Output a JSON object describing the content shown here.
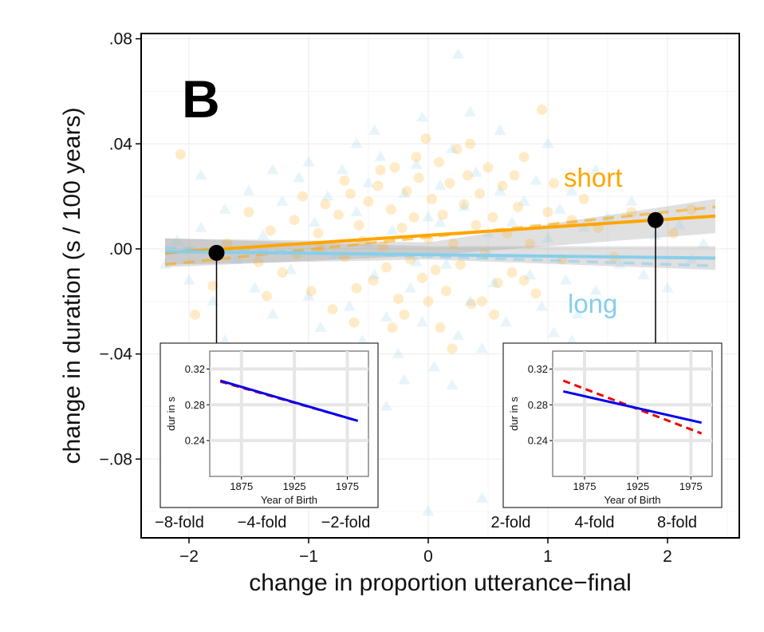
{
  "chart_data": {
    "type": "scatter",
    "panel_label": "B",
    "xlabel": "change in proportion utterance−final",
    "ylabel": "change in duration (s / 100 years)",
    "xlim": [
      -2.4,
      2.6
    ],
    "ylim": [
      -0.11,
      0.082
    ],
    "x_ticks": [
      {
        "v": -2,
        "label": "−2"
      },
      {
        "v": -1,
        "label": "−1"
      },
      {
        "v": 0,
        "label": "0"
      },
      {
        "v": 1,
        "label": "1"
      },
      {
        "v": 2,
        "label": "2"
      }
    ],
    "y_ticks": [
      {
        "v": 0.08,
        "label": ".08"
      },
      {
        "v": 0.04,
        "label": ".04"
      },
      {
        "v": 0.0,
        "label": ".00"
      },
      {
        "v": -0.04,
        "label": "−.04"
      },
      {
        "v": -0.08,
        "label": "−.08"
      }
    ],
    "fold_labels": [
      {
        "v": -2.08,
        "label": "−8-fold"
      },
      {
        "v": -1.39,
        "label": "−4-fold"
      },
      {
        "v": -0.69,
        "label": "−2-fold"
      },
      {
        "v": 0.69,
        "label": "2-fold"
      },
      {
        "v": 1.39,
        "label": "4-fold"
      },
      {
        "v": 2.08,
        "label": "8-fold"
      }
    ],
    "grid": true,
    "series": [
      {
        "name": "short",
        "color": "#FFA500",
        "marker": "circle",
        "fit": {
          "x": [
            -2.2,
            2.4
          ],
          "y": [
            -0.0015,
            0.0125
          ]
        },
        "dashed_fit": {
          "x": [
            -2.2,
            2.4
          ],
          "y": [
            -0.006,
            0.016
          ]
        },
        "ci_upper": [
          -2.2,
          0.004,
          0,
          0.0025,
          2.4,
          0.019
        ],
        "ci_lower": [
          -2.2,
          -0.007,
          0,
          -0.0025,
          2.4,
          0.006
        ],
        "points": [
          [
            -2.07,
            0.036
          ],
          [
            -1.95,
            -0.025
          ],
          [
            -1.8,
            -0.014
          ],
          [
            -1.68,
            0.002
          ],
          [
            -1.5,
            0.014
          ],
          [
            -1.42,
            -0.005
          ],
          [
            -1.32,
            0.007
          ],
          [
            -1.22,
            -0.009
          ],
          [
            -1.12,
            0.011
          ],
          [
            -1.05,
            0.02
          ],
          [
            -0.98,
            -0.016
          ],
          [
            -0.92,
            0.006
          ],
          [
            -0.86,
            0.017
          ],
          [
            -0.8,
            -0.023
          ],
          [
            -0.75,
            0.013
          ],
          [
            -0.7,
            -0.003
          ],
          [
            -0.65,
            0.021
          ],
          [
            -0.62,
            -0.028
          ],
          [
            -0.58,
            0.009
          ],
          [
            -0.55,
            0.003
          ],
          [
            -0.5,
            0.018
          ],
          [
            -0.46,
            -0.012
          ],
          [
            -0.42,
            0.024
          ],
          [
            -0.38,
            0.001
          ],
          [
            -0.35,
            -0.007
          ],
          [
            -0.31,
            0.015
          ],
          [
            -0.28,
            0.031
          ],
          [
            -0.25,
            -0.019
          ],
          [
            -0.22,
            0.008
          ],
          [
            -0.18,
            0.022
          ],
          [
            -0.15,
            -0.004
          ],
          [
            -0.12,
            0.012
          ],
          [
            -0.08,
            0.027
          ],
          [
            -0.05,
            -0.011
          ],
          [
            -0.02,
            0.042
          ],
          [
            0.0,
            0.004
          ],
          [
            0.03,
            0.019
          ],
          [
            0.06,
            -0.008
          ],
          [
            0.09,
            0.033
          ],
          [
            0.12,
            0.013
          ],
          [
            0.15,
            -0.016
          ],
          [
            0.18,
            0.025
          ],
          [
            0.21,
            0.002
          ],
          [
            0.24,
            0.038
          ],
          [
            0.27,
            -0.006
          ],
          [
            0.3,
            0.017
          ],
          [
            0.33,
            0.028
          ],
          [
            0.36,
            -0.021
          ],
          [
            0.4,
            0.009
          ],
          [
            0.43,
            0.021
          ],
          [
            0.47,
            -0.002
          ],
          [
            0.5,
            0.031
          ],
          [
            0.54,
            0.012
          ],
          [
            0.58,
            -0.013
          ],
          [
            0.62,
            0.024
          ],
          [
            0.66,
            0.006
          ],
          [
            0.7,
            -0.009
          ],
          [
            0.75,
            0.016
          ],
          [
            0.8,
            0.035
          ],
          [
            0.85,
            0.002
          ],
          [
            0.9,
            -0.017
          ],
          [
            0.95,
            0.053
          ],
          [
            1.0,
            0.014
          ],
          [
            1.05,
            0.025
          ],
          [
            1.12,
            -0.004
          ],
          [
            1.2,
            0.011
          ],
          [
            1.3,
            0.019
          ],
          [
            1.42,
            0.008
          ],
          [
            1.55,
            -0.003
          ],
          [
            1.7,
            0.014
          ],
          [
            1.88,
            0.01
          ],
          [
            2.05,
            0.006
          ],
          [
            2.2,
            0.015
          ],
          [
            -1.1,
            -0.002
          ],
          [
            -0.9,
            0.0
          ],
          [
            -0.6,
            -0.015
          ],
          [
            -0.4,
            0.03
          ],
          [
            -0.2,
            -0.025
          ],
          [
            0.1,
            -0.03
          ],
          [
            0.35,
            0.04
          ],
          [
            0.55,
            -0.025
          ],
          [
            0.72,
            0.028
          ],
          [
            -0.7,
            0.026
          ],
          [
            0.2,
            -0.038
          ],
          [
            -0.1,
            0.035
          ],
          [
            0.45,
            -0.02
          ],
          [
            0.8,
            -0.012
          ],
          [
            -1.35,
            -0.018
          ],
          [
            0.0,
            -0.02
          ],
          [
            -0.3,
            -0.03
          ]
        ]
      },
      {
        "name": "long",
        "color": "#87CEEB",
        "marker": "triangle",
        "fit": {
          "x": [
            -2.2,
            2.4
          ],
          "y": [
            -0.001,
            -0.0035
          ]
        },
        "dashed_fit": {
          "x": [
            -2.2,
            2.4
          ],
          "y": [
            0.0005,
            -0.0065
          ]
        },
        "ci_upper": [
          -2.2,
          0.004,
          0,
          0.001,
          2.4,
          0.001
        ],
        "ci_lower": [
          -2.2,
          -0.006,
          0,
          -0.004,
          2.4,
          -0.008
        ],
        "points": [
          [
            -2.2,
            -0.006
          ],
          [
            -2.1,
            0.003
          ],
          [
            -2.0,
            -0.012
          ],
          [
            -1.9,
            0.008
          ],
          [
            -1.8,
            -0.02
          ],
          [
            -1.7,
            0.015
          ],
          [
            -1.6,
            -0.004
          ],
          [
            -1.5,
            0.022
          ],
          [
            -1.45,
            -0.015
          ],
          [
            -1.38,
            0.005
          ],
          [
            -1.3,
            -0.025
          ],
          [
            -1.22,
            0.018
          ],
          [
            -1.15,
            -0.008
          ],
          [
            -1.08,
            0.027
          ],
          [
            -1.0,
            -0.018
          ],
          [
            -0.95,
            0.01
          ],
          [
            -0.9,
            -0.03
          ],
          [
            -0.84,
            0.02
          ],
          [
            -0.78,
            -0.002
          ],
          [
            -0.72,
            0.03
          ],
          [
            -0.66,
            -0.022
          ],
          [
            -0.6,
            0.014
          ],
          [
            -0.55,
            -0.035
          ],
          [
            -0.5,
            0.025
          ],
          [
            -0.45,
            -0.01
          ],
          [
            -0.4,
            0.035
          ],
          [
            -0.35,
            -0.026
          ],
          [
            -0.3,
            0.007
          ],
          [
            -0.25,
            -0.04
          ],
          [
            -0.2,
            0.021
          ],
          [
            -0.15,
            -0.015
          ],
          [
            -0.1,
            0.032
          ],
          [
            -0.05,
            -0.028
          ],
          [
            0.0,
            0.012
          ],
          [
            0.05,
            -0.045
          ],
          [
            0.1,
            0.024
          ],
          [
            0.15,
            -0.006
          ],
          [
            0.2,
            0.038
          ],
          [
            0.25,
            -0.033
          ],
          [
            0.3,
            0.016
          ],
          [
            0.35,
            -0.02
          ],
          [
            0.4,
            0.029
          ],
          [
            0.45,
            -0.038
          ],
          [
            0.5,
            0.006
          ],
          [
            0.55,
            -0.013
          ],
          [
            0.6,
            0.022
          ],
          [
            0.65,
            -0.028
          ],
          [
            0.7,
            0.01
          ],
          [
            0.75,
            -0.045
          ],
          [
            0.8,
            0.018
          ],
          [
            0.85,
            -0.01
          ],
          [
            0.9,
            0.026
          ],
          [
            0.95,
            -0.022
          ],
          [
            1.0,
            0.004
          ],
          [
            1.05,
            -0.032
          ],
          [
            1.1,
            0.015
          ],
          [
            1.15,
            -0.012
          ],
          [
            1.2,
            0.022
          ],
          [
            1.25,
            -0.025
          ],
          [
            1.3,
            0.008
          ],
          [
            1.4,
            -0.016
          ],
          [
            1.5,
            0.012
          ],
          [
            1.6,
            -0.006
          ],
          [
            1.7,
            0.018
          ],
          [
            1.8,
            -0.01
          ],
          [
            1.9,
            0.005
          ],
          [
            2.0,
            -0.015
          ],
          [
            2.1,
            0.009
          ],
          [
            2.2,
            -0.004
          ],
          [
            2.3,
            0.002
          ],
          [
            0.25,
            0.074
          ],
          [
            0.45,
            -0.095
          ],
          [
            0.0,
            -0.1
          ],
          [
            -0.6,
            0.04
          ],
          [
            0.6,
            0.045
          ],
          [
            -1.0,
            0.033
          ],
          [
            1.2,
            -0.035
          ],
          [
            -0.2,
            -0.05
          ],
          [
            0.2,
            -0.052
          ],
          [
            -0.8,
            -0.04
          ],
          [
            0.8,
            -0.04
          ],
          [
            -1.3,
            0.03
          ],
          [
            1.4,
            0.03
          ],
          [
            -1.7,
            -0.035
          ],
          [
            0.35,
            0.052
          ],
          [
            -0.45,
            0.045
          ],
          [
            -0.05,
            0.05
          ],
          [
            0.7,
            -0.055
          ],
          [
            -0.35,
            -0.06
          ],
          [
            1.0,
            0.04
          ],
          [
            -1.9,
            0.028
          ],
          [
            0.1,
            0.01
          ],
          [
            -0.1,
            -0.005
          ],
          [
            0.5,
            -0.002
          ],
          [
            -0.5,
            0.002
          ]
        ]
      }
    ],
    "callout_points": [
      {
        "x": -1.77,
        "y": -0.0015
      },
      {
        "x": 1.9,
        "y": 0.011
      }
    ],
    "insets": [
      {
        "ylabel": "dur in s",
        "xlabel": "Year of Birth",
        "x_ticks": [
          "1875",
          "1925",
          "1975"
        ],
        "y_ticks": [
          "0.32",
          "0.28",
          "0.24"
        ],
        "x_tick_values": [
          1875,
          1925,
          1975
        ],
        "y_tick_values": [
          0.32,
          0.28,
          0.24
        ],
        "xlim": [
          1845,
          1995
        ],
        "ylim": [
          0.2,
          0.34
        ],
        "red_dashed": {
          "x": [
            1855,
            1985
          ],
          "y": [
            0.306,
            0.262
          ]
        },
        "blue": {
          "x": [
            1855,
            1985
          ],
          "y": [
            0.307,
            0.262
          ]
        }
      },
      {
        "ylabel": "dur in s",
        "xlabel": "Year of Birth",
        "x_ticks": [
          "1875",
          "1925",
          "1975"
        ],
        "y_ticks": [
          "0.32",
          "0.28",
          "0.24"
        ],
        "x_tick_values": [
          1875,
          1925,
          1975
        ],
        "y_tick_values": [
          0.32,
          0.28,
          0.24
        ],
        "xlim": [
          1845,
          1995
        ],
        "ylim": [
          0.2,
          0.34
        ],
        "red_dashed": {
          "x": [
            1855,
            1985
          ],
          "y": [
            0.307,
            0.248
          ]
        },
        "blue": {
          "x": [
            1855,
            1985
          ],
          "y": [
            0.295,
            0.26
          ]
        }
      }
    ]
  }
}
